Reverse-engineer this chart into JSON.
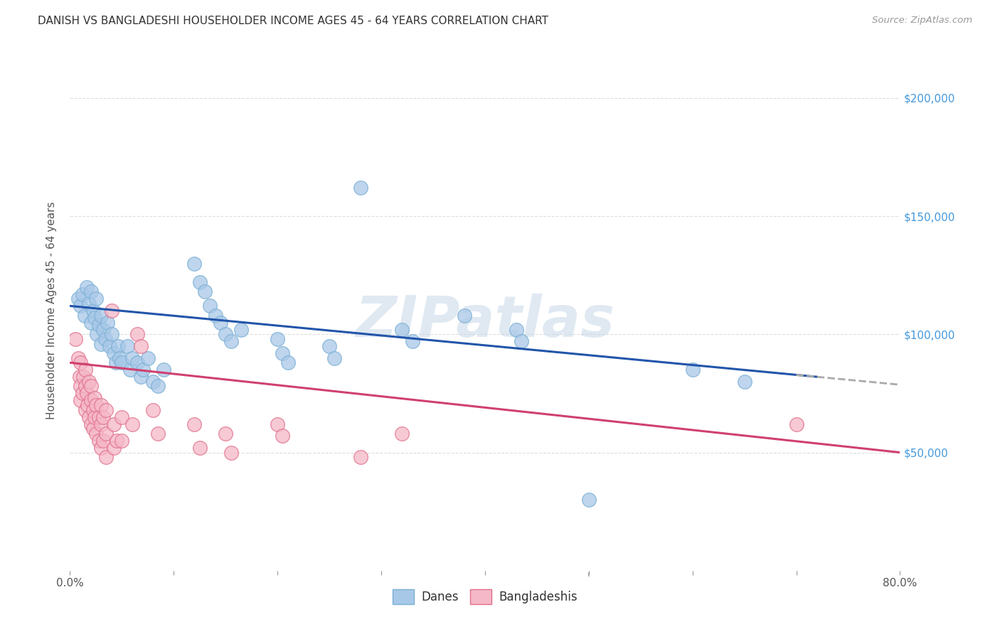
{
  "title": "DANISH VS BANGLADESHI HOUSEHOLDER INCOME AGES 45 - 64 YEARS CORRELATION CHART",
  "source": "Source: ZipAtlas.com",
  "ylabel": "Householder Income Ages 45 - 64 years",
  "xlim": [
    0.0,
    0.8
  ],
  "ylim": [
    0,
    220000
  ],
  "danes_color": "#a8c8e8",
  "danes_edge_color": "#7aafd4",
  "bangladeshis_color": "#f5b8c8",
  "bangladeshis_edge_color": "#e0708a",
  "trend_blue_color": "#2255aa",
  "trend_pink_color": "#d04070",
  "trend_dash_color": "#aaaaaa",
  "danes_scatter": [
    [
      0.008,
      115000
    ],
    [
      0.01,
      112000
    ],
    [
      0.012,
      117000
    ],
    [
      0.014,
      108000
    ],
    [
      0.016,
      120000
    ],
    [
      0.018,
      113000
    ],
    [
      0.02,
      118000
    ],
    [
      0.02,
      105000
    ],
    [
      0.022,
      110000
    ],
    [
      0.024,
      107000
    ],
    [
      0.025,
      115000
    ],
    [
      0.026,
      100000
    ],
    [
      0.028,
      104000
    ],
    [
      0.03,
      108000
    ],
    [
      0.03,
      96000
    ],
    [
      0.032,
      102000
    ],
    [
      0.034,
      98000
    ],
    [
      0.036,
      105000
    ],
    [
      0.038,
      95000
    ],
    [
      0.04,
      100000
    ],
    [
      0.042,
      92000
    ],
    [
      0.044,
      88000
    ],
    [
      0.046,
      95000
    ],
    [
      0.048,
      90000
    ],
    [
      0.05,
      88000
    ],
    [
      0.055,
      95000
    ],
    [
      0.058,
      85000
    ],
    [
      0.06,
      90000
    ],
    [
      0.065,
      88000
    ],
    [
      0.068,
      82000
    ],
    [
      0.07,
      85000
    ],
    [
      0.075,
      90000
    ],
    [
      0.08,
      80000
    ],
    [
      0.085,
      78000
    ],
    [
      0.09,
      85000
    ],
    [
      0.12,
      130000
    ],
    [
      0.125,
      122000
    ],
    [
      0.13,
      118000
    ],
    [
      0.135,
      112000
    ],
    [
      0.14,
      108000
    ],
    [
      0.145,
      105000
    ],
    [
      0.15,
      100000
    ],
    [
      0.155,
      97000
    ],
    [
      0.165,
      102000
    ],
    [
      0.2,
      98000
    ],
    [
      0.205,
      92000
    ],
    [
      0.21,
      88000
    ],
    [
      0.25,
      95000
    ],
    [
      0.255,
      90000
    ],
    [
      0.28,
      162000
    ],
    [
      0.32,
      102000
    ],
    [
      0.33,
      97000
    ],
    [
      0.38,
      108000
    ],
    [
      0.43,
      102000
    ],
    [
      0.435,
      97000
    ],
    [
      0.5,
      30000
    ],
    [
      0.6,
      85000
    ],
    [
      0.65,
      80000
    ]
  ],
  "bangladeshis_scatter": [
    [
      0.005,
      98000
    ],
    [
      0.008,
      90000
    ],
    [
      0.009,
      82000
    ],
    [
      0.01,
      88000
    ],
    [
      0.01,
      78000
    ],
    [
      0.01,
      72000
    ],
    [
      0.012,
      75000
    ],
    [
      0.013,
      82000
    ],
    [
      0.015,
      85000
    ],
    [
      0.015,
      78000
    ],
    [
      0.015,
      68000
    ],
    [
      0.016,
      75000
    ],
    [
      0.017,
      70000
    ],
    [
      0.018,
      80000
    ],
    [
      0.018,
      65000
    ],
    [
      0.02,
      78000
    ],
    [
      0.02,
      72000
    ],
    [
      0.02,
      62000
    ],
    [
      0.022,
      68000
    ],
    [
      0.022,
      60000
    ],
    [
      0.024,
      73000
    ],
    [
      0.024,
      65000
    ],
    [
      0.025,
      70000
    ],
    [
      0.025,
      58000
    ],
    [
      0.028,
      65000
    ],
    [
      0.028,
      55000
    ],
    [
      0.03,
      70000
    ],
    [
      0.03,
      62000
    ],
    [
      0.03,
      52000
    ],
    [
      0.032,
      65000
    ],
    [
      0.032,
      55000
    ],
    [
      0.035,
      68000
    ],
    [
      0.035,
      58000
    ],
    [
      0.035,
      48000
    ],
    [
      0.04,
      110000
    ],
    [
      0.042,
      62000
    ],
    [
      0.042,
      52000
    ],
    [
      0.045,
      55000
    ],
    [
      0.05,
      65000
    ],
    [
      0.05,
      55000
    ],
    [
      0.06,
      62000
    ],
    [
      0.065,
      100000
    ],
    [
      0.068,
      95000
    ],
    [
      0.08,
      68000
    ],
    [
      0.085,
      58000
    ],
    [
      0.12,
      62000
    ],
    [
      0.125,
      52000
    ],
    [
      0.15,
      58000
    ],
    [
      0.155,
      50000
    ],
    [
      0.2,
      62000
    ],
    [
      0.205,
      57000
    ],
    [
      0.28,
      48000
    ],
    [
      0.32,
      58000
    ],
    [
      0.7,
      62000
    ]
  ],
  "watermark": "ZIPatlas",
  "background_color": "#ffffff",
  "grid_color": "#dddddd",
  "title_color": "#333333",
  "axis_label_color": "#555555",
  "right_ytick_color": "#4499dd"
}
